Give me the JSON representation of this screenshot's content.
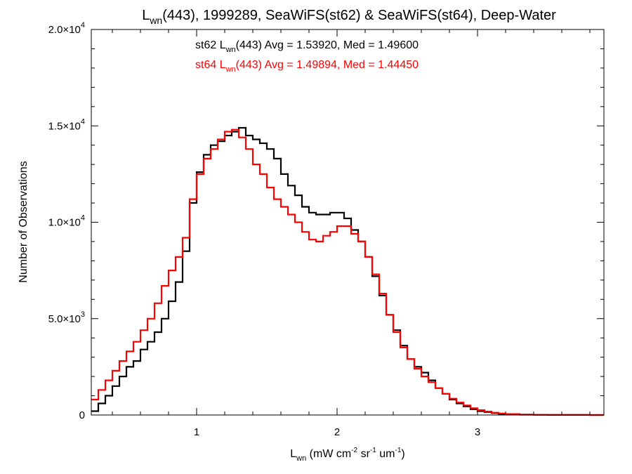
{
  "chart_data": {
    "type": "line",
    "step": true,
    "title": {
      "base": "L",
      "sub": "wn",
      "rest": "(443), 1999289, SeaWiFS(st62) & SeaWiFS(st64), Deep-Water"
    },
    "xlabel": {
      "base": "L",
      "sub": "wn",
      "p1": " (mW cm",
      "sup1": "-2",
      "p2": " sr",
      "sup2": "-1",
      "p3": " um",
      "sup3": "-1",
      "p4": ")"
    },
    "ylabel": "Number of Observations",
    "xlim": [
      0.25,
      3.9
    ],
    "ylim": [
      0,
      20000
    ],
    "x_ticks": [
      {
        "value": 1,
        "label": "1"
      },
      {
        "value": 2,
        "label": "2"
      },
      {
        "value": 3,
        "label": "3"
      }
    ],
    "y_ticks": [
      {
        "value": 0,
        "mant": "0",
        "exp": ""
      },
      {
        "value": 5000,
        "mant": "5.0×10",
        "exp": "3"
      },
      {
        "value": 10000,
        "mant": "1.0×10",
        "exp": "4"
      },
      {
        "value": 15000,
        "mant": "1.5×10",
        "exp": "4"
      },
      {
        "value": 20000,
        "mant": "2.0×10",
        "exp": "4"
      }
    ],
    "grid": false,
    "annotations": [
      {
        "color": "#000000",
        "pre": "st62 L",
        "sub": "wn",
        "post": "(443) Avg = 1.53920, Med = 1.49600"
      },
      {
        "color": "#ff0000",
        "pre": "st64 L",
        "sub": "wn",
        "post": "(443) Avg = 1.49894, Med = 1.44450"
      }
    ],
    "series": [
      {
        "color": "#000000",
        "x": [
          0.25,
          0.3,
          0.35,
          0.4,
          0.45,
          0.5,
          0.55,
          0.6,
          0.65,
          0.7,
          0.75,
          0.8,
          0.85,
          0.9,
          0.95,
          1.0,
          1.05,
          1.1,
          1.15,
          1.2,
          1.25,
          1.3,
          1.35,
          1.4,
          1.45,
          1.5,
          1.55,
          1.6,
          1.65,
          1.7,
          1.75,
          1.8,
          1.85,
          1.9,
          1.95,
          2.0,
          2.05,
          2.1,
          2.15,
          2.2,
          2.25,
          2.3,
          2.35,
          2.4,
          2.45,
          2.5,
          2.55,
          2.6,
          2.65,
          2.7,
          2.75,
          2.8,
          2.85,
          2.9,
          2.95,
          3.0,
          3.05,
          3.1,
          3.15,
          3.2,
          3.3,
          3.4,
          3.5,
          3.6,
          3.7,
          3.8,
          3.9
        ],
        "values": [
          200,
          600,
          1000,
          1500,
          2000,
          2500,
          2800,
          3400,
          3800,
          4300,
          5000,
          5900,
          6900,
          8500,
          11000,
          12600,
          13500,
          14000,
          14200,
          14500,
          14700,
          14900,
          14500,
          14300,
          14100,
          13800,
          13300,
          12500,
          11900,
          11400,
          10800,
          10500,
          10400,
          10400,
          10500,
          10500,
          10200,
          9600,
          9000,
          8200,
          7200,
          6200,
          5200,
          4400,
          3600,
          2900,
          2500,
          2200,
          1800,
          1400,
          1100,
          800,
          600,
          450,
          300,
          200,
          150,
          100,
          60,
          40,
          20,
          10,
          5,
          3,
          2,
          1,
          0
        ]
      },
      {
        "color": "#ff0000",
        "x": [
          0.25,
          0.3,
          0.35,
          0.4,
          0.45,
          0.5,
          0.55,
          0.6,
          0.65,
          0.7,
          0.75,
          0.8,
          0.85,
          0.9,
          0.95,
          1.0,
          1.05,
          1.1,
          1.15,
          1.2,
          1.25,
          1.3,
          1.35,
          1.4,
          1.45,
          1.5,
          1.55,
          1.6,
          1.65,
          1.7,
          1.75,
          1.8,
          1.85,
          1.9,
          1.95,
          2.0,
          2.05,
          2.1,
          2.15,
          2.2,
          2.25,
          2.3,
          2.35,
          2.4,
          2.45,
          2.5,
          2.55,
          2.6,
          2.65,
          2.7,
          2.75,
          2.8,
          2.85,
          2.9,
          2.95,
          3.0,
          3.05,
          3.1,
          3.15,
          3.2,
          3.3,
          3.4,
          3.5,
          3.6,
          3.7,
          3.8,
          3.9
        ],
        "values": [
          800,
          1300,
          1800,
          2300,
          2800,
          3300,
          3800,
          4400,
          5000,
          5800,
          6700,
          7500,
          8200,
          9200,
          11200,
          12500,
          13300,
          13800,
          14300,
          14700,
          14800,
          14400,
          13800,
          13000,
          12500,
          11800,
          11200,
          10800,
          10400,
          10000,
          9500,
          9100,
          9000,
          9300,
          9500,
          9800,
          9800,
          9400,
          9000,
          8200,
          7300,
          6300,
          5200,
          4300,
          3500,
          2900,
          2400,
          2000,
          1700,
          1400,
          1100,
          850,
          650,
          500,
          350,
          250,
          180,
          120,
          80,
          50,
          25,
          12,
          6,
          3,
          2,
          1,
          0
        ]
      }
    ]
  }
}
